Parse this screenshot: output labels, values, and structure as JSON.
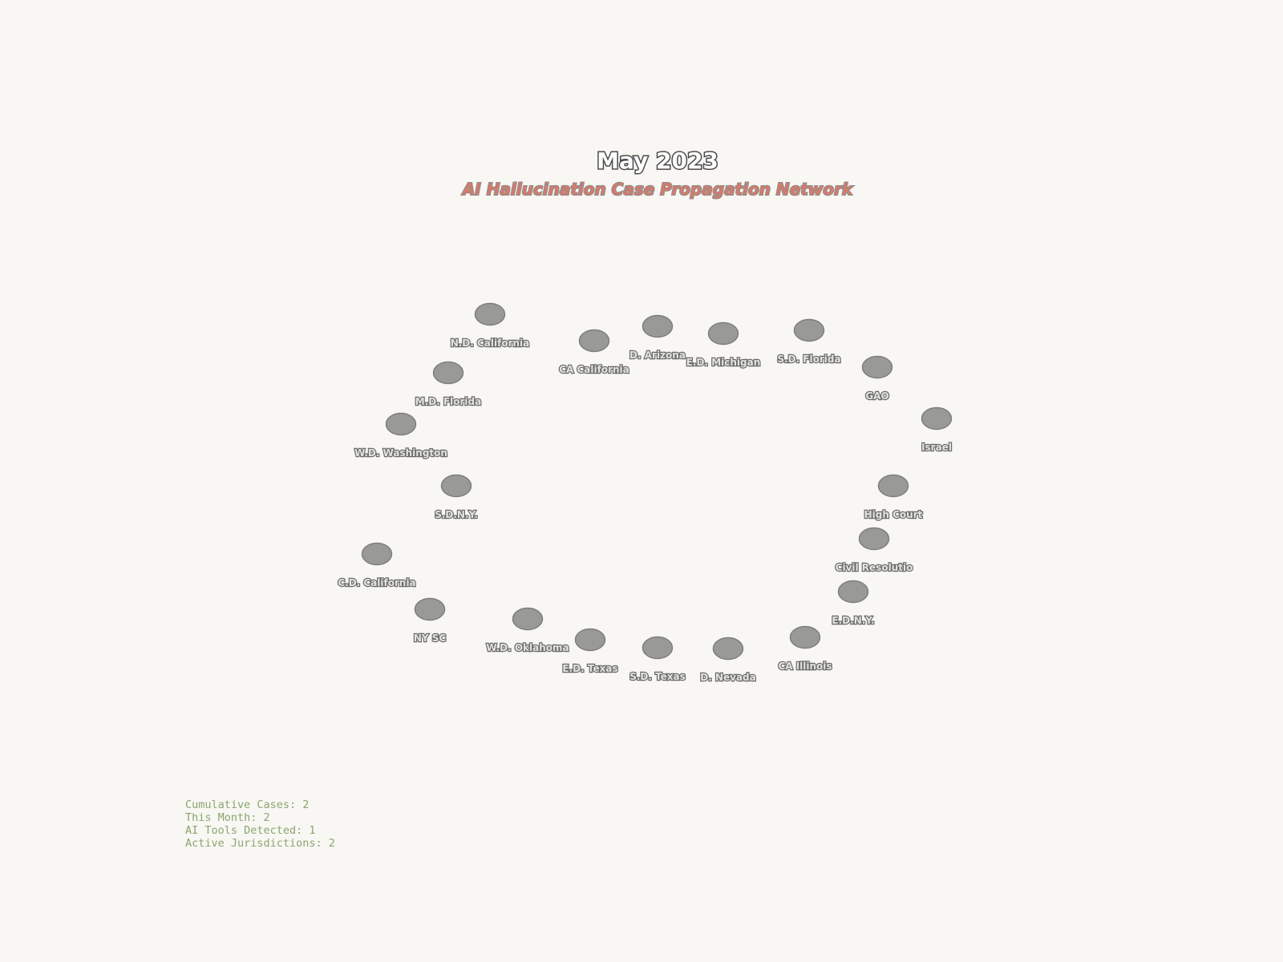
{
  "header": {
    "title": "May 2023",
    "subtitle": "AI Hallucination Case Propagation Network"
  },
  "nodes": [
    {
      "label": "N.D. California"
    },
    {
      "label": "CA California"
    },
    {
      "label": "D. Arizona"
    },
    {
      "label": "E.D. Michigan"
    },
    {
      "label": "S.D. Florida"
    },
    {
      "label": "GAO"
    },
    {
      "label": "M.D. Florida"
    },
    {
      "label": "Israel"
    },
    {
      "label": "W.D. Washington"
    },
    {
      "label": "S.D.N.Y."
    },
    {
      "label": "High Court"
    },
    {
      "label": "Civil Resolutio"
    },
    {
      "label": "C.D. California"
    },
    {
      "label": "E.D.N.Y."
    },
    {
      "label": "NY SC"
    },
    {
      "label": "W.D. Oklahoma"
    },
    {
      "label": "CA Illinois"
    },
    {
      "label": "E.D. Texas"
    },
    {
      "label": "S.D. Texas"
    },
    {
      "label": "D. Nevada"
    }
  ],
  "stats": {
    "cumulative_cases": "Cumulative Cases: 2",
    "this_month": "This Month: 2",
    "ai_tools": "AI Tools Detected: 1",
    "active_jurisdictions": "Active Jurisdictions: 2"
  },
  "colors": {
    "background": "#f8f7f3",
    "node_fill": "#999a98",
    "subtitle": "#d27b6c",
    "stats_text": "#8aa670"
  }
}
